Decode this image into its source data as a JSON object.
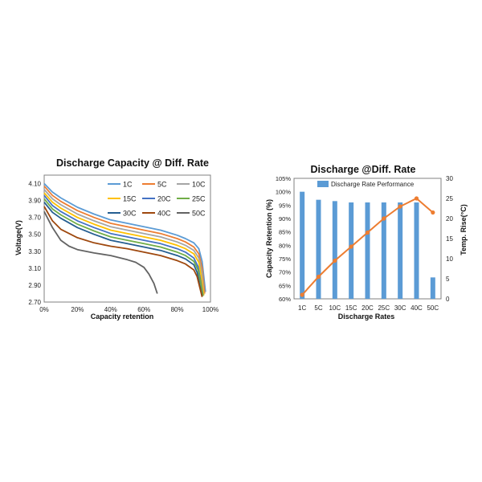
{
  "chart_data": [
    {
      "type": "line",
      "title": "Discharge  Capacity @ Diff. Rate",
      "xlabel": "Capacity retention",
      "ylabel": "Voltage(V)",
      "xlim": [
        0,
        100
      ],
      "ylim": [
        2.7,
        4.2
      ],
      "x_ticks": [
        "0%",
        "20%",
        "40%",
        "60%",
        "80%",
        "100%"
      ],
      "y_ticks": [
        "2.70",
        "2.90",
        "3.10",
        "3.30",
        "3.50",
        "3.70",
        "3.90",
        "4.10"
      ],
      "legend_position": "top-right",
      "grid": false,
      "series": [
        {
          "name": "1C",
          "color": "#5b9bd5",
          "x": [
            0,
            5,
            10,
            20,
            30,
            40,
            50,
            60,
            70,
            80,
            85,
            90,
            93,
            95,
            97
          ],
          "y": [
            4.1,
            4.0,
            3.93,
            3.82,
            3.74,
            3.67,
            3.63,
            3.59,
            3.55,
            3.49,
            3.45,
            3.4,
            3.33,
            3.18,
            2.82
          ]
        },
        {
          "name": "5C",
          "color": "#ed7d31",
          "x": [
            0,
            5,
            10,
            20,
            30,
            40,
            50,
            60,
            70,
            80,
            85,
            90,
            93,
            95,
            96.5
          ],
          "y": [
            4.07,
            3.96,
            3.89,
            3.78,
            3.7,
            3.63,
            3.59,
            3.55,
            3.51,
            3.45,
            3.41,
            3.35,
            3.27,
            3.1,
            2.8
          ]
        },
        {
          "name": "10C",
          "color": "#a5a5a5",
          "x": [
            0,
            5,
            10,
            20,
            30,
            40,
            50,
            60,
            70,
            80,
            85,
            90,
            93,
            95,
            96
          ],
          "y": [
            4.03,
            3.92,
            3.85,
            3.74,
            3.66,
            3.59,
            3.55,
            3.51,
            3.47,
            3.41,
            3.37,
            3.31,
            3.22,
            3.04,
            2.79
          ]
        },
        {
          "name": "15C",
          "color": "#ffc000",
          "x": [
            0,
            5,
            10,
            20,
            30,
            40,
            50,
            60,
            70,
            80,
            85,
            90,
            93,
            94.5,
            96
          ],
          "y": [
            3.99,
            3.88,
            3.81,
            3.7,
            3.62,
            3.55,
            3.51,
            3.47,
            3.43,
            3.37,
            3.33,
            3.27,
            3.17,
            3.0,
            2.78
          ]
        },
        {
          "name": "20C",
          "color": "#4472c4",
          "x": [
            0,
            5,
            10,
            20,
            30,
            40,
            50,
            60,
            70,
            80,
            85,
            90,
            92.5,
            94,
            95.5
          ],
          "y": [
            3.96,
            3.84,
            3.77,
            3.66,
            3.58,
            3.51,
            3.47,
            3.43,
            3.39,
            3.33,
            3.29,
            3.22,
            3.12,
            2.96,
            2.78
          ]
        },
        {
          "name": "25C",
          "color": "#70ad47",
          "x": [
            0,
            5,
            10,
            20,
            30,
            40,
            50,
            60,
            70,
            80,
            85,
            90,
            92.5,
            94,
            95.5
          ],
          "y": [
            3.92,
            3.8,
            3.73,
            3.62,
            3.54,
            3.47,
            3.43,
            3.39,
            3.35,
            3.29,
            3.25,
            3.18,
            3.08,
            2.93,
            2.77
          ]
        },
        {
          "name": "30C",
          "color": "#255e91",
          "x": [
            0,
            5,
            10,
            20,
            30,
            40,
            50,
            60,
            70,
            80,
            85,
            90,
            92,
            93.5,
            95
          ],
          "y": [
            3.88,
            3.76,
            3.69,
            3.58,
            3.5,
            3.43,
            3.39,
            3.35,
            3.31,
            3.25,
            3.21,
            3.14,
            3.05,
            2.9,
            2.77
          ]
        },
        {
          "name": "40C",
          "color": "#9e480e",
          "x": [
            0,
            5,
            10,
            20,
            30,
            40,
            50,
            60,
            70,
            80,
            85,
            90,
            92,
            93.5,
            95
          ],
          "y": [
            3.83,
            3.66,
            3.56,
            3.46,
            3.4,
            3.36,
            3.33,
            3.29,
            3.25,
            3.19,
            3.15,
            3.08,
            3.0,
            2.88,
            2.76
          ]
        },
        {
          "name": "50C",
          "color": "#636363",
          "x": [
            0,
            5,
            10,
            15,
            20,
            30,
            40,
            50,
            55,
            60,
            63,
            66,
            68
          ],
          "y": [
            3.77,
            3.58,
            3.43,
            3.36,
            3.32,
            3.28,
            3.25,
            3.2,
            3.17,
            3.11,
            3.03,
            2.92,
            2.8
          ]
        }
      ]
    },
    {
      "type": "bar",
      "title": "Discharge @Diff. Rate",
      "xlabel": "Discharge Rates",
      "ylabel": "Capacity Retention  (%)",
      "y2label": "Temp. Rise(°C)",
      "categories": [
        "1C",
        "5C",
        "10C",
        "15C",
        "20C",
        "25C",
        "30C",
        "40C",
        "50C"
      ],
      "ylim": [
        60,
        105
      ],
      "y_ticks": [
        "60%",
        "65%",
        "70%",
        "75%",
        "80%",
        "85%",
        "90%",
        "95%",
        "100%",
        "105%"
      ],
      "y2lim": [
        0,
        30
      ],
      "y2_ticks": [
        "0",
        "5",
        "10",
        "15",
        "20",
        "25",
        "30"
      ],
      "legend_position": "top",
      "grid": false,
      "series": [
        {
          "name": "Discharge Rate Performance",
          "axis": "left",
          "kind": "bar",
          "color": "#5b9bd5",
          "values": [
            100,
            97,
            96.5,
            96,
            96,
            96,
            96,
            96,
            68
          ]
        },
        {
          "axis": "right",
          "kind": "line",
          "color": "#ed7d31",
          "values": [
            1,
            5.5,
            9.5,
            13,
            16.5,
            20,
            23,
            25,
            21.5
          ]
        }
      ]
    }
  ]
}
